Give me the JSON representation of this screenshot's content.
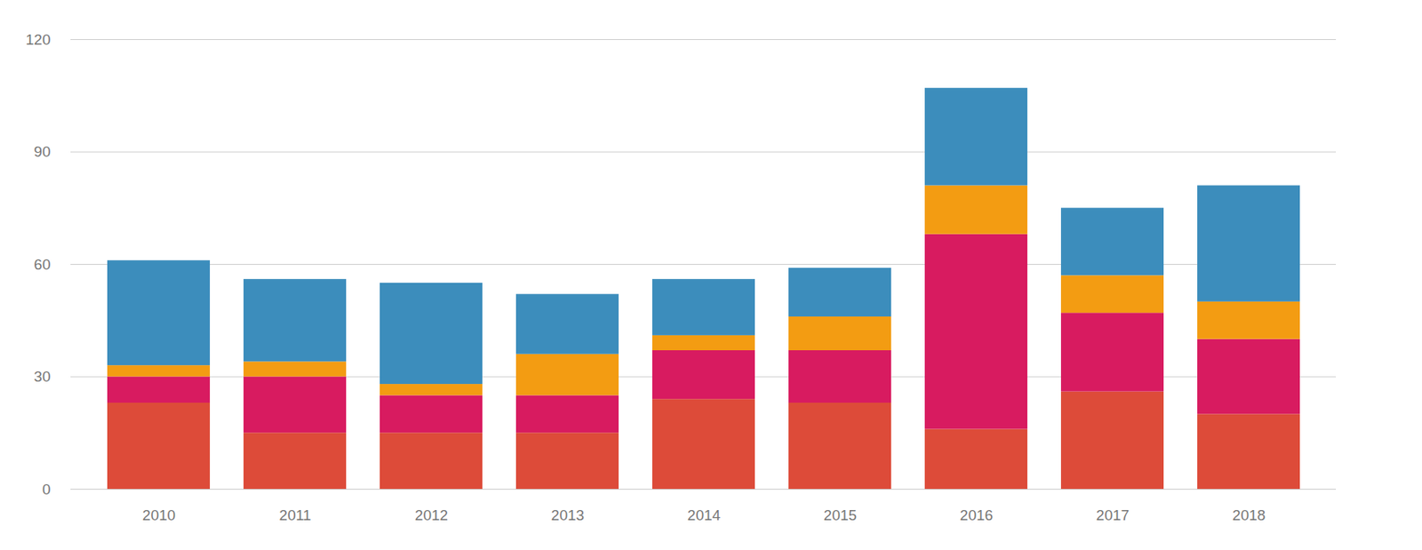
{
  "chart_data": {
    "type": "bar",
    "stacked": true,
    "categories": [
      "2010",
      "2011",
      "2012",
      "2013",
      "2014",
      "2015",
      "2016",
      "2017",
      "2018"
    ],
    "series": [
      {
        "color": "#dd4b39",
        "values": [
          23,
          15,
          15,
          15,
          24,
          23,
          16,
          26,
          20
        ]
      },
      {
        "color": "#d81b60",
        "values": [
          7,
          15,
          10,
          10,
          13,
          14,
          52,
          21,
          20
        ]
      },
      {
        "color": "#f39c12",
        "values": [
          3,
          4,
          3,
          11,
          4,
          9,
          13,
          10,
          10
        ]
      },
      {
        "color": "#3c8dbc",
        "values": [
          28,
          22,
          27,
          16,
          15,
          13,
          26,
          18,
          31
        ]
      }
    ],
    "ylim": [
      0,
      120
    ],
    "yticks": [
      0,
      30,
      60,
      90,
      120
    ],
    "grid": true
  }
}
